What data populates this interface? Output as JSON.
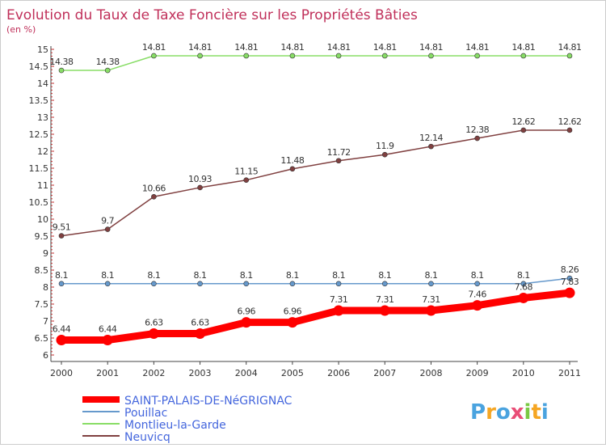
{
  "chart_data": {
    "type": "line",
    "title": "Evolution du Taux de Taxe Foncière sur les Propriétés Bâties",
    "subtitle": "(en %)",
    "categories": [
      "2000",
      "2001",
      "2002",
      "2003",
      "2004",
      "2005",
      "2006",
      "2007",
      "2008",
      "2009",
      "2010",
      "2011"
    ],
    "ylim": [
      6,
      15
    ],
    "yticks": [
      "6",
      "6.5",
      "7",
      "7.5",
      "8",
      "8.5",
      "9",
      "9.5",
      "10",
      "10.5",
      "11",
      "11.5",
      "12",
      "12.5",
      "13",
      "13.5",
      "14",
      "14.5",
      "15"
    ],
    "grid": false,
    "legend_position": "bottom-left",
    "series": [
      {
        "name": "SAINT-PALAIS-DE-NéGRIGNAC",
        "color": "#ff0000",
        "values": [
          6.44,
          6.44,
          6.63,
          6.63,
          6.96,
          6.96,
          7.31,
          7.31,
          7.31,
          7.46,
          7.68,
          7.83
        ],
        "labels": [
          "6.44",
          "6.44",
          "6.63",
          "6.63",
          "6.96",
          "6.96",
          "7.31",
          "7.31",
          "7.31",
          "7.46",
          "7.68",
          "7.83"
        ]
      },
      {
        "name": "Pouillac",
        "color": "#6699cc",
        "values": [
          8.1,
          8.1,
          8.1,
          8.1,
          8.1,
          8.1,
          8.1,
          8.1,
          8.1,
          8.1,
          8.1,
          8.26
        ],
        "labels": [
          "8.1",
          "8.1",
          "8.1",
          "8.1",
          "8.1",
          "8.1",
          "8.1",
          "8.1",
          "8.1",
          "8.1",
          "8.1",
          "8.26"
        ]
      },
      {
        "name": "Montlieu-la-Garde",
        "color": "#88dd66",
        "values": [
          14.38,
          14.38,
          14.81,
          14.81,
          14.81,
          14.81,
          14.81,
          14.81,
          14.81,
          14.81,
          14.81,
          14.81
        ],
        "labels": [
          "14.38",
          "14.38",
          "14.81",
          "14.81",
          "14.81",
          "14.81",
          "14.81",
          "14.81",
          "14.81",
          "14.81",
          "14.81",
          "14.81"
        ]
      },
      {
        "name": "Neuvicq",
        "color": "#804040",
        "values": [
          9.51,
          9.7,
          10.66,
          10.93,
          11.15,
          11.48,
          11.72,
          11.9,
          12.14,
          12.38,
          12.62,
          12.62
        ],
        "labels": [
          "9.51",
          "9.7",
          "10.66",
          "10.93",
          "11.15",
          "11.48",
          "11.72",
          "11.9",
          "12.14",
          "12.38",
          "12.62",
          "12.62"
        ]
      }
    ]
  },
  "brand": {
    "letters": [
      "P",
      "r",
      "o",
      "x",
      "i",
      "t",
      "i"
    ],
    "colors": [
      "#4aa3df",
      "#f5a623",
      "#4aa3df",
      "#e94e77",
      "#7ac943",
      "#f5a623",
      "#4aa3df"
    ]
  }
}
